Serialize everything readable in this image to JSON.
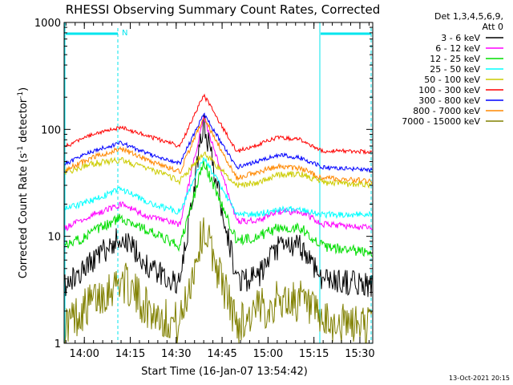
{
  "chart_data": {
    "type": "line",
    "title": "RHESSI Observing Summary Count Rates, Corrected",
    "xlabel": "Start Time (16-Jan-07 13:54:42)",
    "ylabel_main": "Corrected Count Rate (s",
    "ylabel_sup1": "-1",
    "ylabel_mid": " detector",
    "ylabel_sup2": "-1",
    "ylabel_end": ")",
    "y_scale": "log",
    "ylim": [
      1,
      1000
    ],
    "xlim_minutes": [
      13.9,
      30.7
    ],
    "x_tick_labels": [
      "14:00",
      "14:15",
      "14:30",
      "14:45",
      "15:00",
      "15:15",
      "15:30"
    ],
    "y_tick_labels": [
      "1",
      "10",
      "100",
      "1000"
    ],
    "legend_header": [
      "Det 1,3,4,5,6,9,",
      "Att 0"
    ],
    "annotation_N": "N",
    "timestamp": "13-Oct-2021 20:15",
    "night_marker_color": "#00e5ee",
    "series": [
      {
        "name": "3 - 6 keV",
        "color": "#000000",
        "values": [
          3.5,
          6,
          10,
          5,
          3.5,
          120,
          4,
          4,
          8,
          8,
          4,
          3.5
        ]
      },
      {
        "name": "6 - 12 keV",
        "color": "#ff00ff",
        "values": [
          12,
          16,
          20,
          15,
          13,
          130,
          14,
          14,
          17,
          17,
          13,
          12
        ]
      },
      {
        "name": "12 - 25 keV",
        "color": "#00dd00",
        "values": [
          8,
          11,
          15,
          11,
          8,
          50,
          9,
          10,
          12,
          12,
          8,
          7
        ]
      },
      {
        "name": "25 - 50 keV",
        "color": "#00ffff",
        "values": [
          18,
          22,
          28,
          20,
          17,
          55,
          16,
          16,
          18,
          18,
          16,
          16
        ]
      },
      {
        "name": "50 - 100 keV",
        "color": "#cccc00",
        "values": [
          40,
          48,
          52,
          42,
          33,
          60,
          30,
          32,
          38,
          38,
          32,
          30
        ]
      },
      {
        "name": "100 - 300 keV",
        "color": "#ff0000",
        "values": [
          70,
          90,
          105,
          85,
          70,
          210,
          62,
          72,
          85,
          80,
          63,
          62
        ]
      },
      {
        "name": "300 - 800 keV",
        "color": "#0000ff",
        "values": [
          48,
          63,
          75,
          58,
          48,
          140,
          44,
          50,
          58,
          54,
          44,
          42
        ]
      },
      {
        "name": "800 - 7000 keV",
        "color": "#ff8800",
        "values": [
          42,
          55,
          66,
          50,
          40,
          130,
          35,
          40,
          45,
          43,
          35,
          33
        ]
      },
      {
        "name": "7000 - 15000 keV",
        "color": "#808000",
        "values": [
          1.5,
          2.5,
          4,
          2,
          1.5,
          12,
          1.5,
          2,
          2.5,
          2.5,
          1.5,
          1.5
        ]
      }
    ]
  }
}
